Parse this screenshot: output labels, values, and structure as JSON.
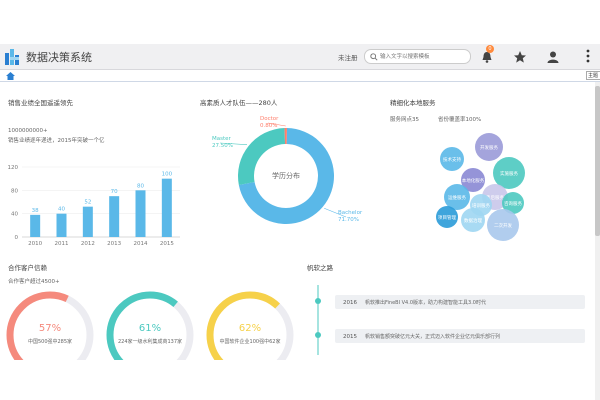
{
  "app": {
    "title": "数据决策系统"
  },
  "header": {
    "login_label": "未注册",
    "search_placeholder": "输入文字以搜索模板",
    "notification_count": "0",
    "more_tooltip": "主题"
  },
  "sales": {
    "title": "销售业绩全国遥遥领先",
    "figure": "1000000000+",
    "subtitle": "销售业绩逐年递进，2015年突破一个亿",
    "chart_data": {
      "type": "bar",
      "categories": [
        "2010",
        "2011",
        "2012",
        "2013",
        "2014",
        "2015"
      ],
      "values": [
        38,
        40,
        52,
        70,
        80,
        100
      ],
      "ylim": [
        0,
        120
      ],
      "yticks": [
        "0",
        "40",
        "80",
        "120"
      ],
      "color": "#5ab8e8"
    }
  },
  "talent": {
    "title": "高素质人才队伍——280人",
    "chart_data": {
      "type": "pie",
      "center_label": "学历分布",
      "slices": [
        {
          "name": "Bachelor",
          "percent_label": "71.70%",
          "value": 71.7,
          "color": "#5ab8e8"
        },
        {
          "name": "Master",
          "percent_label": "27.50%",
          "value": 27.5,
          "color": "#4cc9c0"
        },
        {
          "name": "Doctor",
          "percent_label": "0.80%",
          "value": 0.8,
          "color": "#ff7e6b"
        }
      ]
    }
  },
  "service": {
    "title": "精细化本地服务",
    "stat1": "服务网点35",
    "stat2": "省份覆盖率100%",
    "bubbles": [
      "技术支持",
      "开发服务",
      "本地化服务",
      "实施服务",
      "运维服务",
      "售后服务",
      "培训服务",
      "咨询服务",
      "项目管理",
      "数据治理",
      "二次开发"
    ]
  },
  "clients": {
    "title": "合作客户信赖",
    "subtitle": "合作客户超过4500+",
    "gauges": [
      {
        "percent": "57%",
        "value": 57,
        "label": "中国500强中285家",
        "color": "#f58a7d"
      },
      {
        "percent": "61%",
        "value": 61,
        "label": "224家一级水利集成商137家",
        "color": "#4cc9c0"
      },
      {
        "percent": "62%",
        "value": 62,
        "label": "中国软件企业100强中62家",
        "color": "#f6d14a"
      }
    ]
  },
  "history": {
    "title": "帆软之路",
    "items": [
      {
        "year": "2016",
        "text": "帆软推出FineBI V4.0版本，助力构建智能工具3.0时代"
      },
      {
        "year": "2015",
        "text": "帆软销售额突破亿元大关，正式迈入软件企业亿元俱乐部行列"
      }
    ]
  }
}
